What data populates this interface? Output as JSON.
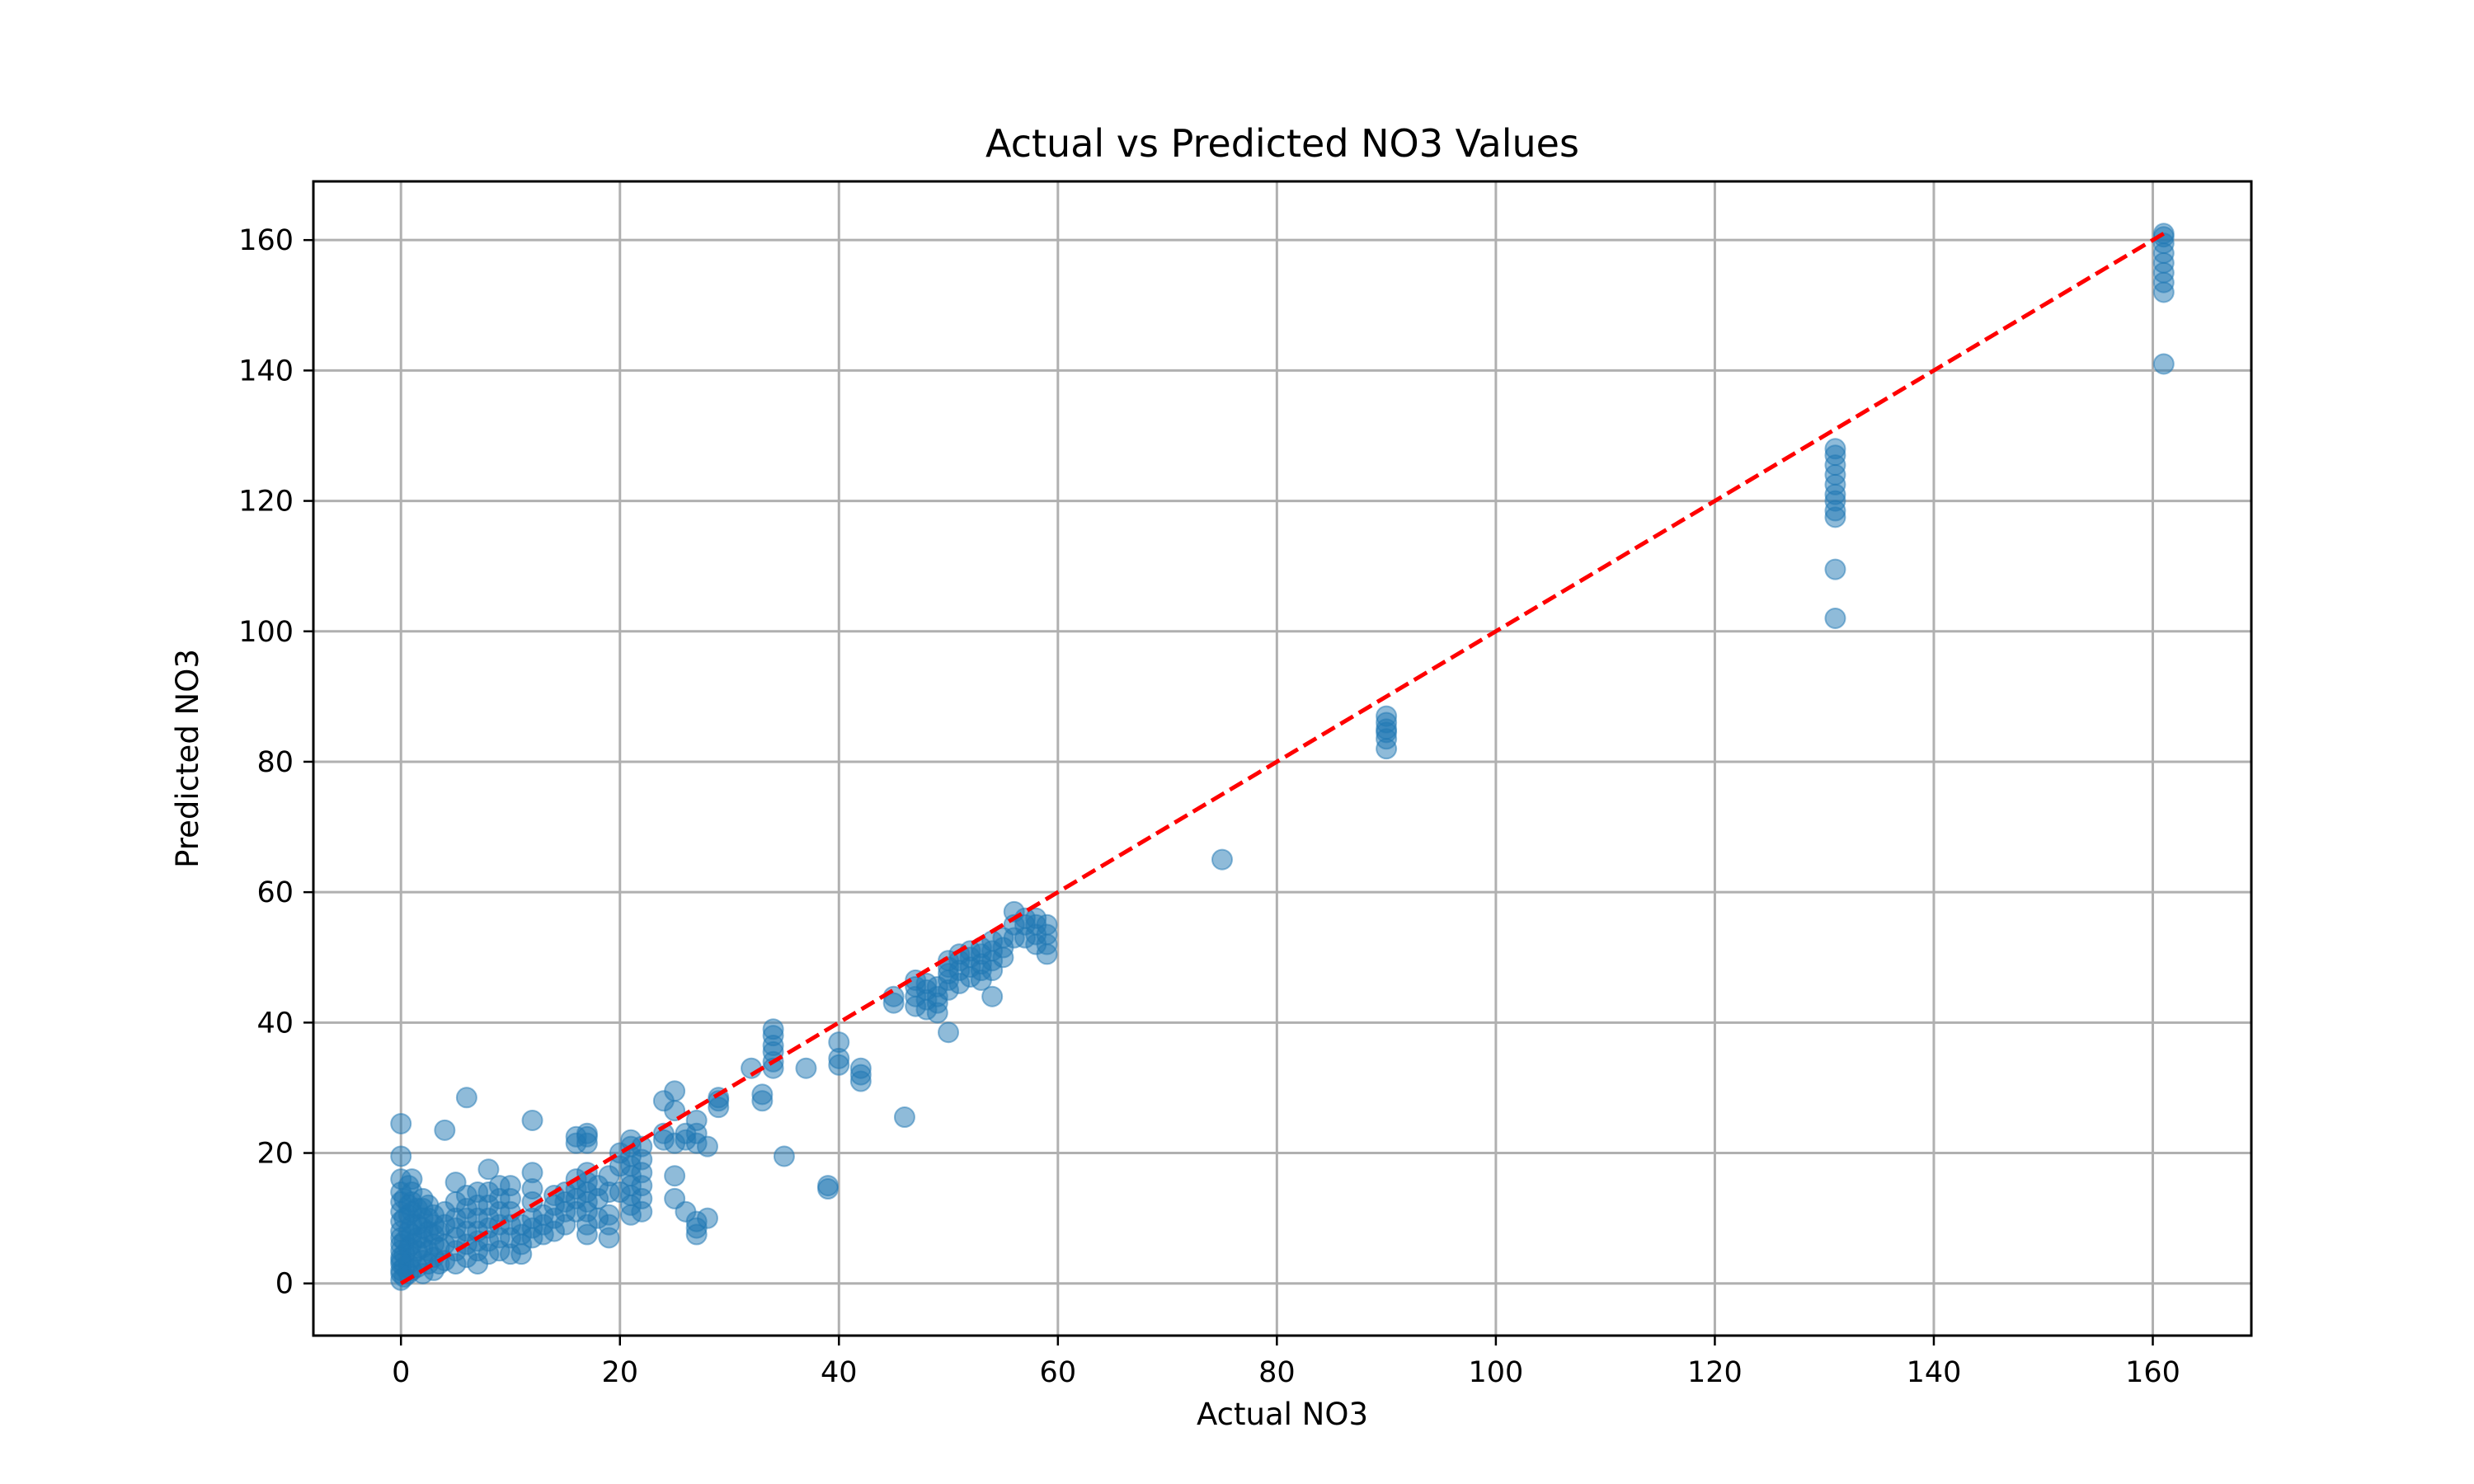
{
  "chart_data": {
    "type": "scatter",
    "title": "Actual vs Predicted NO3 Values",
    "xlabel": "Actual NO3",
    "ylabel": "Predicted NO3",
    "xlim": [
      -8,
      169
    ],
    "ylim": [
      -8,
      169
    ],
    "xticks": [
      0,
      20,
      40,
      60,
      80,
      100,
      120,
      140,
      160
    ],
    "yticks": [
      0,
      20,
      40,
      60,
      80,
      100,
      120,
      140,
      160
    ],
    "grid": true,
    "legend": "none",
    "series": [
      {
        "marker": "circle",
        "color": "#1f77b4",
        "alpha": 0.5,
        "points": [
          [
            0,
            0.5
          ],
          [
            0,
            1.5
          ],
          [
            0,
            2
          ],
          [
            0,
            3
          ],
          [
            0,
            3.5
          ],
          [
            0,
            4
          ],
          [
            0,
            5
          ],
          [
            0,
            6
          ],
          [
            0,
            7
          ],
          [
            0,
            8
          ],
          [
            0,
            9.5
          ],
          [
            0,
            11
          ],
          [
            0,
            12.5
          ],
          [
            0,
            14
          ],
          [
            0,
            16
          ],
          [
            0,
            19.5
          ],
          [
            0,
            24.5
          ],
          [
            0.3,
            1
          ],
          [
            0.3,
            2.5
          ],
          [
            0.3,
            4.5
          ],
          [
            0.3,
            6.5
          ],
          [
            0.3,
            10
          ],
          [
            0.3,
            13
          ],
          [
            0.7,
            1.5
          ],
          [
            0.7,
            3
          ],
          [
            0.7,
            5.5
          ],
          [
            0.7,
            8
          ],
          [
            0.7,
            10.5
          ],
          [
            0.7,
            12
          ],
          [
            0.7,
            15
          ],
          [
            1,
            2
          ],
          [
            1,
            4
          ],
          [
            1,
            6
          ],
          [
            1,
            7.5
          ],
          [
            1,
            9
          ],
          [
            1,
            11
          ],
          [
            1,
            12.5
          ],
          [
            1,
            14
          ],
          [
            1,
            16
          ],
          [
            1.5,
            2.5
          ],
          [
            1.5,
            5
          ],
          [
            1.5,
            7
          ],
          [
            1.5,
            9
          ],
          [
            1.5,
            11.5
          ],
          [
            2,
            1.5
          ],
          [
            2,
            3.5
          ],
          [
            2,
            5.5
          ],
          [
            2,
            7
          ],
          [
            2,
            8.5
          ],
          [
            2,
            10
          ],
          [
            2,
            11.5
          ],
          [
            2,
            13
          ],
          [
            2.5,
            3
          ],
          [
            2.5,
            5
          ],
          [
            2.5,
            8
          ],
          [
            2.5,
            10
          ],
          [
            2.5,
            12
          ],
          [
            3,
            2
          ],
          [
            3,
            4
          ],
          [
            3,
            6
          ],
          [
            3,
            7.5
          ],
          [
            3,
            9
          ],
          [
            3,
            10.5
          ],
          [
            3.5,
            3
          ],
          [
            3.5,
            5.5
          ],
          [
            3.5,
            8
          ],
          [
            4,
            23.5
          ],
          [
            4,
            3.5
          ],
          [
            4,
            6
          ],
          [
            4,
            9
          ],
          [
            4,
            11
          ],
          [
            5,
            3
          ],
          [
            5,
            5
          ],
          [
            5,
            7
          ],
          [
            5,
            8.5
          ],
          [
            5,
            10
          ],
          [
            5,
            12.5
          ],
          [
            5,
            15.5
          ],
          [
            6,
            28.5
          ],
          [
            6,
            4
          ],
          [
            6,
            6
          ],
          [
            6,
            8
          ],
          [
            6,
            10
          ],
          [
            6,
            11.5
          ],
          [
            6,
            13.5
          ],
          [
            7,
            3
          ],
          [
            7,
            5
          ],
          [
            7,
            6.5
          ],
          [
            7,
            8
          ],
          [
            7,
            10
          ],
          [
            7,
            12
          ],
          [
            7,
            14
          ],
          [
            8,
            4.5
          ],
          [
            8,
            6.5
          ],
          [
            8,
            8.5
          ],
          [
            8,
            10
          ],
          [
            8,
            12
          ],
          [
            8,
            14
          ],
          [
            8,
            17.5
          ],
          [
            9,
            5
          ],
          [
            9,
            7
          ],
          [
            9,
            9
          ],
          [
            9,
            11
          ],
          [
            9,
            13
          ],
          [
            9,
            15
          ],
          [
            10,
            4.5
          ],
          [
            10,
            7
          ],
          [
            10,
            9
          ],
          [
            10,
            11
          ],
          [
            10,
            13
          ],
          [
            10,
            15
          ],
          [
            11,
            4.5
          ],
          [
            11,
            6
          ],
          [
            11,
            7.5
          ],
          [
            11,
            9
          ],
          [
            12,
            25
          ],
          [
            12,
            7
          ],
          [
            12,
            8.5
          ],
          [
            12,
            10
          ],
          [
            12,
            12.5
          ],
          [
            12,
            14.5
          ],
          [
            12,
            17
          ],
          [
            13,
            7.5
          ],
          [
            13,
            9
          ],
          [
            13,
            10.5
          ],
          [
            14,
            8
          ],
          [
            14,
            10
          ],
          [
            14,
            12
          ],
          [
            14,
            13.5
          ],
          [
            15,
            9
          ],
          [
            15,
            11
          ],
          [
            15,
            12.5
          ],
          [
            15,
            14
          ],
          [
            16,
            11
          ],
          [
            16,
            13
          ],
          [
            16,
            14.5
          ],
          [
            16,
            16
          ],
          [
            16,
            21.5
          ],
          [
            16,
            22.5
          ],
          [
            17,
            7.5
          ],
          [
            17,
            9
          ],
          [
            17,
            11
          ],
          [
            17,
            12.5
          ],
          [
            17,
            14
          ],
          [
            17,
            15.5
          ],
          [
            17,
            17
          ],
          [
            17,
            21.5
          ],
          [
            17,
            22.5
          ],
          [
            17,
            23
          ],
          [
            18,
            10
          ],
          [
            18,
            13
          ],
          [
            18,
            15
          ],
          [
            19,
            7
          ],
          [
            19,
            9
          ],
          [
            19,
            10.5
          ],
          [
            19,
            14
          ],
          [
            19,
            16.5
          ],
          [
            20,
            14
          ],
          [
            20,
            18
          ],
          [
            20,
            20
          ],
          [
            21,
            10.5
          ],
          [
            21,
            12
          ],
          [
            21,
            13.5
          ],
          [
            21,
            15
          ],
          [
            21,
            16.5
          ],
          [
            21,
            18
          ],
          [
            21,
            19.5
          ],
          [
            21,
            21
          ],
          [
            21,
            22
          ],
          [
            22,
            11
          ],
          [
            22,
            13
          ],
          [
            22,
            15
          ],
          [
            22,
            17
          ],
          [
            22,
            19
          ],
          [
            22,
            21
          ],
          [
            24,
            22
          ],
          [
            24,
            23
          ],
          [
            24,
            28
          ],
          [
            25,
            13
          ],
          [
            25,
            16.5
          ],
          [
            25,
            21.5
          ],
          [
            25,
            26.5
          ],
          [
            25,
            29.5
          ],
          [
            26,
            11
          ],
          [
            26,
            22
          ],
          [
            26,
            23
          ],
          [
            27,
            7.5
          ],
          [
            27,
            8.5
          ],
          [
            27,
            9.5
          ],
          [
            27,
            21.5
          ],
          [
            27,
            23
          ],
          [
            27,
            25
          ],
          [
            28,
            10
          ],
          [
            28,
            21
          ],
          [
            29,
            27
          ],
          [
            29,
            28
          ],
          [
            29,
            28.5
          ],
          [
            32,
            33
          ],
          [
            33,
            28
          ],
          [
            33,
            29
          ],
          [
            34,
            33
          ],
          [
            34,
            34
          ],
          [
            34,
            35.5
          ],
          [
            34,
            36.5
          ],
          [
            34,
            38
          ],
          [
            34,
            39
          ],
          [
            35,
            19.5
          ],
          [
            37,
            33
          ],
          [
            39,
            14.5
          ],
          [
            39,
            15
          ],
          [
            40,
            33.5
          ],
          [
            40,
            34.5
          ],
          [
            40,
            37
          ],
          [
            42,
            31
          ],
          [
            42,
            32
          ],
          [
            42,
            33
          ],
          [
            45,
            43
          ],
          [
            45,
            44
          ],
          [
            46,
            25.5
          ],
          [
            47,
            42.5
          ],
          [
            47,
            44
          ],
          [
            47,
            45.5
          ],
          [
            47,
            46.5
          ],
          [
            48,
            42
          ],
          [
            48,
            43.5
          ],
          [
            48,
            45
          ],
          [
            48,
            46
          ],
          [
            49,
            41.5
          ],
          [
            49,
            43
          ],
          [
            49,
            44
          ],
          [
            49,
            45.5
          ],
          [
            50,
            38.5
          ],
          [
            50,
            45
          ],
          [
            50,
            46.5
          ],
          [
            50,
            47.5
          ],
          [
            50,
            48.5
          ],
          [
            50,
            49.5
          ],
          [
            51,
            46
          ],
          [
            51,
            48
          ],
          [
            51,
            49.5
          ],
          [
            51,
            50.5
          ],
          [
            52,
            47
          ],
          [
            52,
            48.5
          ],
          [
            52,
            50
          ],
          [
            52,
            51
          ],
          [
            53,
            46.5
          ],
          [
            53,
            48
          ],
          [
            53,
            49
          ],
          [
            53,
            50.5
          ],
          [
            53,
            51.5
          ],
          [
            54,
            44
          ],
          [
            54,
            48
          ],
          [
            54,
            49.5
          ],
          [
            54,
            51
          ],
          [
            54,
            52.5
          ],
          [
            55,
            50
          ],
          [
            55,
            51.5
          ],
          [
            55,
            53
          ],
          [
            56,
            53
          ],
          [
            56,
            55
          ],
          [
            56,
            57
          ],
          [
            57,
            53
          ],
          [
            57,
            55
          ],
          [
            57,
            56
          ],
          [
            58,
            52
          ],
          [
            58,
            53.5
          ],
          [
            58,
            55
          ],
          [
            58,
            56
          ],
          [
            59,
            50.5
          ],
          [
            59,
            52
          ],
          [
            59,
            53.5
          ],
          [
            59,
            55
          ],
          [
            75,
            65
          ],
          [
            90,
            82
          ],
          [
            90,
            83.5
          ],
          [
            90,
            84.5
          ],
          [
            90,
            85
          ],
          [
            90,
            86
          ],
          [
            90,
            87
          ],
          [
            131,
            102
          ],
          [
            131,
            109.5
          ],
          [
            131,
            117.5
          ],
          [
            131,
            118.5
          ],
          [
            131,
            120
          ],
          [
            131,
            121
          ],
          [
            131,
            122.5
          ],
          [
            131,
            124
          ],
          [
            131,
            125.5
          ],
          [
            131,
            127
          ],
          [
            131,
            128
          ],
          [
            161,
            141
          ],
          [
            161,
            152
          ],
          [
            161,
            153.5
          ],
          [
            161,
            155
          ],
          [
            161,
            156.5
          ],
          [
            161,
            158
          ],
          [
            161,
            159.5
          ],
          [
            161,
            160.5
          ],
          [
            161,
            161
          ]
        ]
      }
    ],
    "reference_line": {
      "from": [
        0,
        0
      ],
      "to": [
        161,
        161
      ],
      "color": "#ff0000",
      "style": "dashed"
    }
  }
}
